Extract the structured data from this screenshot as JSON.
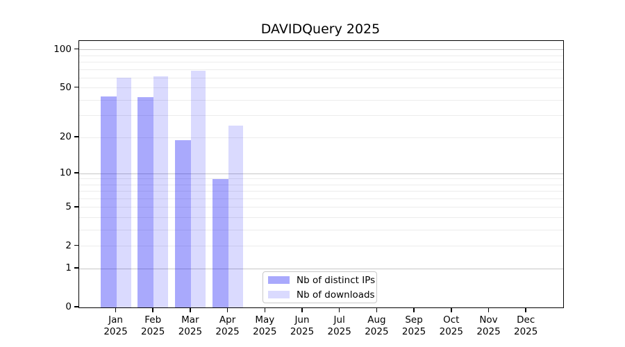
{
  "chart_data": {
    "type": "bar",
    "title": "DAVIDQuery 2025",
    "year": "2025",
    "categories": [
      "Jan",
      "Feb",
      "Mar",
      "Apr",
      "May",
      "Jun",
      "Jul",
      "Aug",
      "Sep",
      "Oct",
      "Nov",
      "Dec"
    ],
    "series": [
      {
        "name": "Nb of distinct IPs",
        "color": "rgba(10,10,245,0.35)",
        "values": [
          43,
          42,
          19,
          9,
          null,
          null,
          null,
          null,
          null,
          null,
          null,
          null
        ]
      },
      {
        "name": "Nb of downloads",
        "color": "rgba(10,10,245,0.15)",
        "values": [
          60,
          62,
          68,
          25,
          null,
          null,
          null,
          null,
          null,
          null,
          null,
          null
        ]
      }
    ],
    "y_scale": "log1p",
    "ylim": [
      0,
      100
    ],
    "y_ticks": [
      0,
      1,
      2,
      5,
      10,
      20,
      50,
      100
    ],
    "gridlines": {
      "major": [
        1,
        10,
        100
      ],
      "minor": [
        2,
        3,
        4,
        5,
        6,
        7,
        8,
        9,
        20,
        30,
        40,
        50,
        60,
        70,
        80,
        90
      ],
      "minor_color": "#ececec",
      "major_color": "#c6c6c6"
    },
    "legend_position": "bottom-center",
    "axis_color": "#000000",
    "background_color": "#ffffff"
  }
}
